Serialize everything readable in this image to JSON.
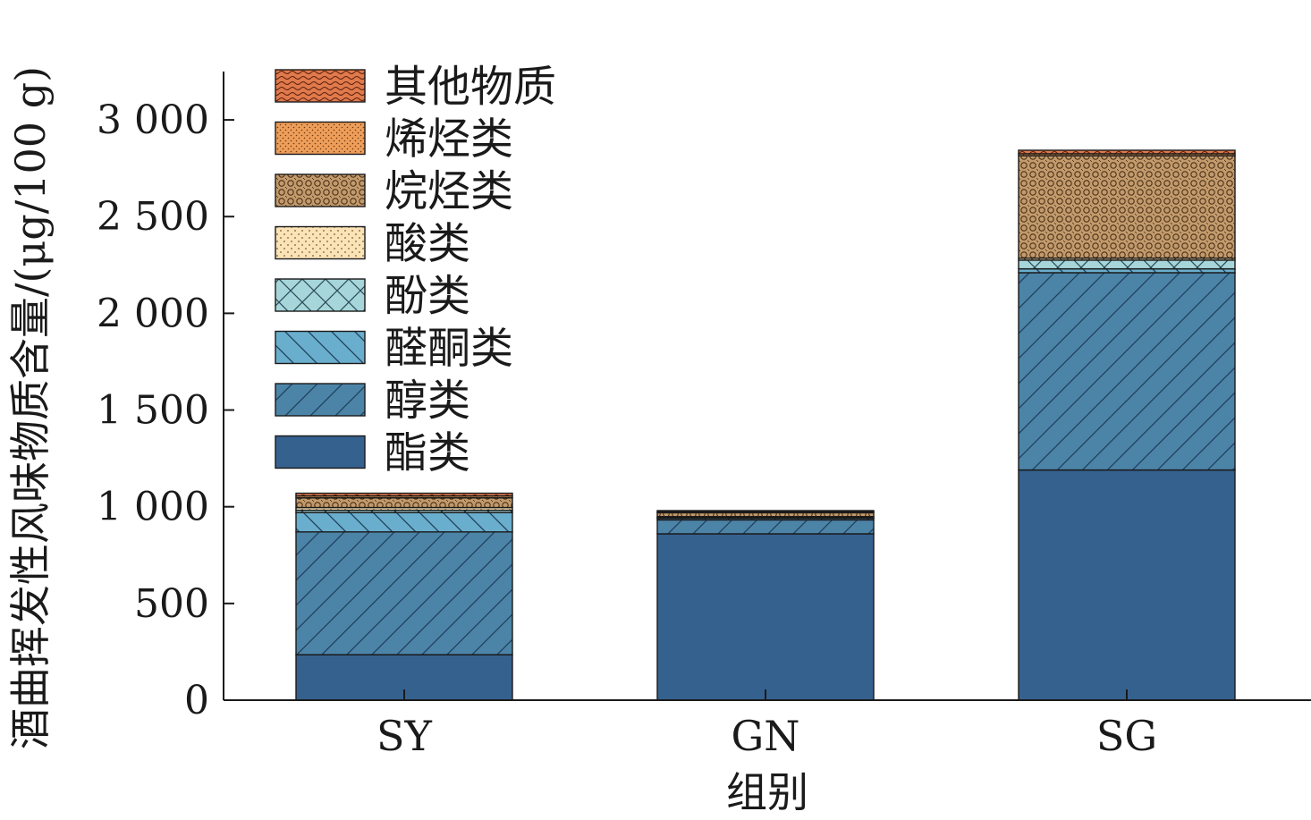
{
  "chart_data": {
    "type": "bar",
    "stacked": true,
    "categories": [
      "SY",
      "GN",
      "SG"
    ],
    "xlabel": "组别",
    "ylabel": "酒曲挥发性风味物质含量/(μg/100 g)",
    "ylim": [
      0,
      3250
    ],
    "yticks": [
      0,
      500,
      1000,
      1500,
      2000,
      2500,
      3000
    ],
    "ytick_labels": [
      "0",
      "500",
      "1 000",
      "1 500",
      "2 000",
      "2 500",
      "3 000"
    ],
    "grid": false,
    "legend_position": "top-left",
    "series": [
      {
        "name": "酯类",
        "values": [
          235,
          860,
          1190
        ],
        "color": "#35618f",
        "pattern": "solid"
      },
      {
        "name": "醇类",
        "values": [
          635,
          72,
          1020
        ],
        "color": "#4c84a8",
        "pattern": "diag-right"
      },
      {
        "name": "醛酮类",
        "values": [
          100,
          8,
          20
        ],
        "color": "#6aaecd",
        "pattern": "diag-left"
      },
      {
        "name": "酚类",
        "values": [
          12,
          4,
          45
        ],
        "color": "#a6d6d9",
        "pattern": "cross"
      },
      {
        "name": "酸类",
        "values": [
          14,
          5,
          10
        ],
        "color": "#fbe3b8",
        "pattern": "dots"
      },
      {
        "name": "烷烃类",
        "values": [
          50,
          20,
          530
        ],
        "color": "#c29a6c",
        "pattern": "lattice"
      },
      {
        "name": "烯烃类",
        "values": [
          10,
          5,
          10
        ],
        "color": "#ee9e5a",
        "pattern": "fine-dots"
      },
      {
        "name": "其他物质",
        "values": [
          14,
          6,
          18
        ],
        "color": "#e07a4c",
        "pattern": "waves"
      }
    ]
  }
}
